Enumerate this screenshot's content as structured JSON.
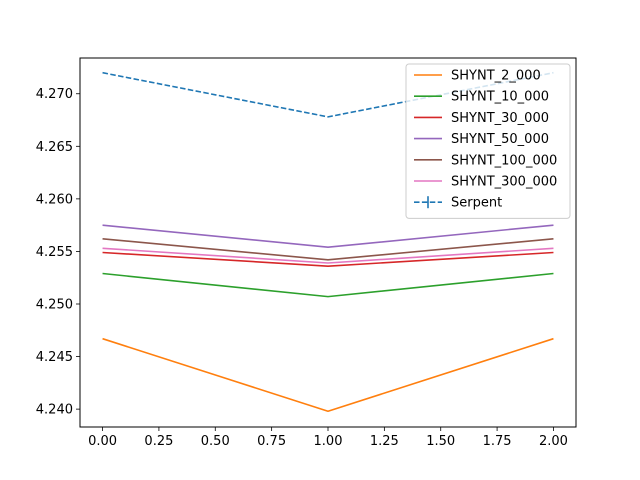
{
  "chart_data": {
    "type": "line",
    "title": "",
    "xlabel": "",
    "ylabel": "",
    "x": [
      0,
      1,
      2
    ],
    "xlim": [
      -0.1,
      2.1
    ],
    "ylim": [
      4.2383,
      4.2734
    ],
    "xticks": [
      0.0,
      0.25,
      0.5,
      0.75,
      1.0,
      1.25,
      1.5,
      1.75,
      2.0
    ],
    "xtick_labels": [
      "0.00",
      "0.25",
      "0.50",
      "0.75",
      "1.00",
      "1.25",
      "1.50",
      "1.75",
      "2.00"
    ],
    "yticks": [
      4.24,
      4.245,
      4.25,
      4.255,
      4.26,
      4.265,
      4.27
    ],
    "ytick_labels": [
      "4.240",
      "4.245",
      "4.250",
      "4.255",
      "4.260",
      "4.265",
      "4.270"
    ],
    "grid": false,
    "legend_position": "top-right",
    "series": [
      {
        "name": "SHYNT_2_000",
        "color": "#ff7f0e",
        "style": "solid",
        "values": [
          4.2467,
          4.2398,
          4.2467
        ]
      },
      {
        "name": "SHYNT_10_000",
        "color": "#2ca02c",
        "style": "solid",
        "values": [
          4.2529,
          4.2507,
          4.2529
        ]
      },
      {
        "name": "SHYNT_30_000",
        "color": "#d62728",
        "style": "solid",
        "values": [
          4.2549,
          4.2536,
          4.2549
        ]
      },
      {
        "name": "SHYNT_50_000",
        "color": "#9467bd",
        "style": "solid",
        "values": [
          4.2575,
          4.2554,
          4.2575
        ]
      },
      {
        "name": "SHYNT_100_000",
        "color": "#8c564b",
        "style": "solid",
        "values": [
          4.2562,
          4.2542,
          4.2562
        ]
      },
      {
        "name": "SHYNT_300_000",
        "color": "#e377c2",
        "style": "solid",
        "values": [
          4.2553,
          4.2539,
          4.2553
        ]
      },
      {
        "name": "Serpent",
        "color": "#1f77b4",
        "style": "dashed",
        "errorbar": true,
        "values": [
          4.272,
          4.2678,
          4.272
        ]
      }
    ]
  }
}
